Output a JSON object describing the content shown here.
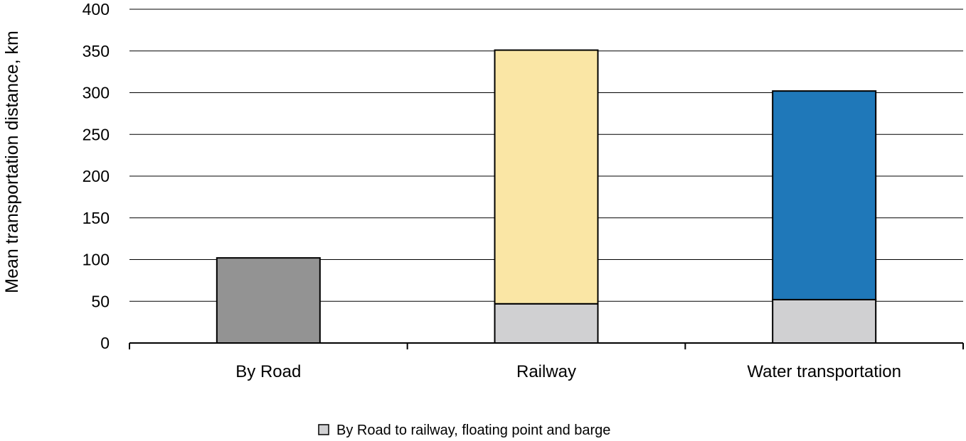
{
  "chart_data": {
    "type": "bar",
    "stacked": true,
    "categories": [
      "By Road",
      "Railway",
      "Water transportation"
    ],
    "series": [
      {
        "name": "By Road to railway, floating point and barge",
        "values": [
          0,
          47,
          52
        ],
        "color": "#d0d0d2",
        "in_legend": true
      },
      {
        "name": "",
        "values": [
          102,
          304,
          250
        ],
        "colors": [
          "#939393",
          "#fae6a5",
          "#1f78b9"
        ],
        "in_legend": false
      }
    ],
    "title": "",
    "xlabel": "",
    "ylabel": "Mean  transportation distance,  km",
    "ylim": [
      0,
      400
    ],
    "yticks": [
      0,
      50,
      100,
      150,
      200,
      250,
      300,
      350,
      400
    ],
    "grid": true,
    "legend_position": "bottom-center"
  }
}
